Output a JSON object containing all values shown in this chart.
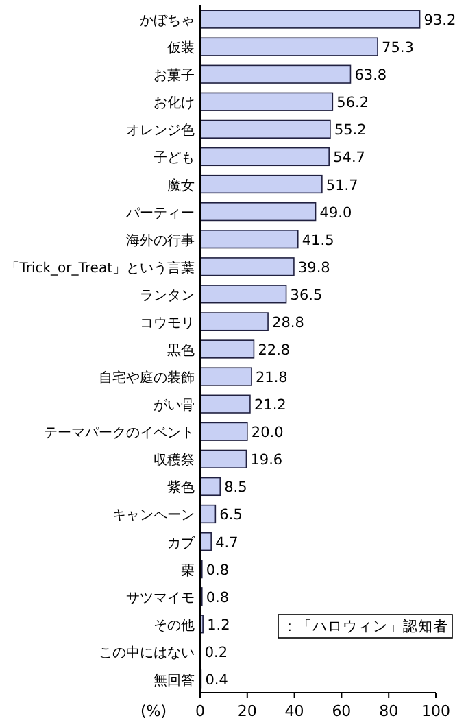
{
  "chart_data": {
    "type": "bar",
    "orientation": "horizontal",
    "xlabel": "(%)",
    "categories": [
      "かぼちゃ",
      "仮装",
      "お菓子",
      "お化け",
      "オレンジ色",
      "子ども",
      "魔女",
      "パーティー",
      "海外の行事",
      "「Trick_or_Treat」という言葉",
      "ランタン",
      "コウモリ",
      "黒色",
      "自宅や庭の装飾",
      "がい骨",
      "テーマパークのイベント",
      "収穫祭",
      "紫色",
      "キャンペーン",
      "カブ",
      "栗",
      "サツマイモ",
      "その他",
      "この中にはない",
      "無回答"
    ],
    "values": [
      93.2,
      75.3,
      63.8,
      56.2,
      55.2,
      54.7,
      51.7,
      49.0,
      41.5,
      39.8,
      36.5,
      28.8,
      22.8,
      21.8,
      21.2,
      20.0,
      19.6,
      8.5,
      6.5,
      4.7,
      0.8,
      0.8,
      1.2,
      0.2,
      0.4
    ],
    "value_labels": [
      "93.2",
      "75.3",
      "63.8",
      "56.2",
      "55.2",
      "54.7",
      "51.7",
      "49.0",
      "41.5",
      "39.8",
      "36.5",
      "28.8",
      "22.8",
      "21.8",
      "21.2",
      "20.0",
      "19.6",
      "8.5",
      "6.5",
      "4.7",
      "0.8",
      "0.8",
      "1.2",
      "0.2",
      "0.4"
    ],
    "color": "#c8d0f4",
    "xlim": [
      0,
      100
    ],
    "xticks": [
      0,
      20,
      40,
      60,
      80,
      100
    ],
    "annotations": [
      "：「ハロウィン」認知者"
    ]
  }
}
